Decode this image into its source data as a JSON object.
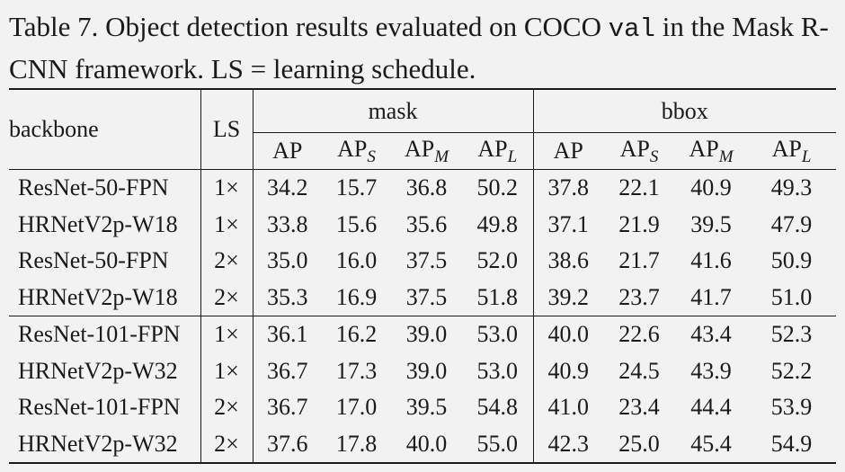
{
  "caption": {
    "before": "Table 7. Object detection results evaluated on COCO ",
    "mono": "val",
    "after": " in the Mask R-CNN framework. LS = learning schedule."
  },
  "header": {
    "backbone": "backbone",
    "ls": "LS",
    "groups": [
      "mask",
      "bbox"
    ],
    "metrics": [
      {
        "base": "AP",
        "sub": ""
      },
      {
        "base": "AP",
        "sub": "S"
      },
      {
        "base": "AP",
        "sub": "M"
      },
      {
        "base": "AP",
        "sub": "L"
      },
      {
        "base": "AP",
        "sub": ""
      },
      {
        "base": "AP",
        "sub": "S"
      },
      {
        "base": "AP",
        "sub": "M"
      },
      {
        "base": "AP",
        "sub": "L"
      }
    ]
  },
  "rows": [
    {
      "backbone": "ResNet-50-FPN",
      "ls": "1×",
      "values": [
        "34.2",
        "15.7",
        "36.8",
        "50.2",
        "37.8",
        "22.1",
        "40.9",
        "49.3"
      ],
      "bold": []
    },
    {
      "backbone": "HRNetV2p-W18",
      "ls": "1×",
      "values": [
        "33.8",
        "15.6",
        "35.6",
        "49.8",
        "37.1",
        "21.9",
        "39.5",
        "47.9"
      ],
      "bold": []
    },
    {
      "backbone": "ResNet-50-FPN",
      "ls": "2×",
      "values": [
        "35.0",
        "16.0",
        "37.5",
        "52.0",
        "38.6",
        "21.7",
        "41.6",
        "50.9"
      ],
      "bold": [
        2,
        3
      ]
    },
    {
      "backbone": "HRNetV2p-W18",
      "ls": "2×",
      "values": [
        "35.3",
        "16.9",
        "37.5",
        "51.8",
        "39.2",
        "23.7",
        "41.7",
        "51.0"
      ],
      "bold": [
        0,
        1,
        2,
        4,
        5,
        6,
        7
      ]
    },
    {
      "backbone": "ResNet-101-FPN",
      "ls": "1×",
      "values": [
        "36.1",
        "16.2",
        "39.0",
        "53.0",
        "40.0",
        "22.6",
        "43.4",
        "52.3"
      ],
      "bold": []
    },
    {
      "backbone": "HRNetV2p-W32",
      "ls": "1×",
      "values": [
        "36.7",
        "17.3",
        "39.0",
        "53.0",
        "40.9",
        "24.5",
        "43.9",
        "52.2"
      ],
      "bold": []
    },
    {
      "backbone": "ResNet-101-FPN",
      "ls": "2×",
      "values": [
        "36.7",
        "17.0",
        "39.5",
        "54.8",
        "41.0",
        "23.4",
        "44.4",
        "53.9"
      ],
      "bold": []
    },
    {
      "backbone": "HRNetV2p-W32",
      "ls": "2×",
      "values": [
        "37.6",
        "17.8",
        "40.0",
        "55.0",
        "42.3",
        "25.0",
        "45.4",
        "54.9"
      ],
      "bold": [
        0,
        1,
        2,
        3,
        4,
        5,
        6,
        7
      ]
    }
  ]
}
